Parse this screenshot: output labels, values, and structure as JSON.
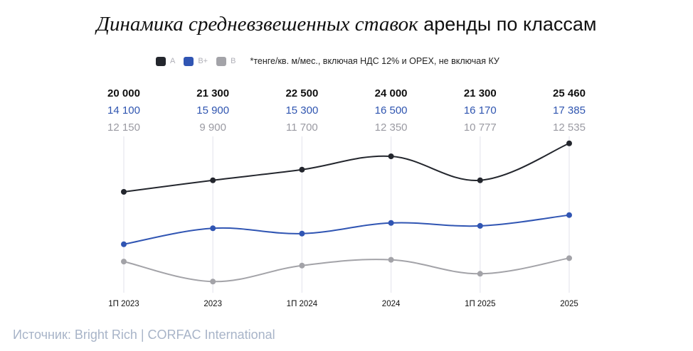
{
  "title": {
    "italic": "Динамика средневзвешенных ставок",
    "regular": " аренды по классам"
  },
  "legend": {
    "items": [
      {
        "name": "A",
        "color": "#23262d"
      },
      {
        "name": "B+",
        "color": "#3055b3"
      },
      {
        "name": "B",
        "color": "#a3a3a8"
      }
    ],
    "note": "*тенге/кв. м/мес., включая НДС 12% и OPEX, не включая КУ"
  },
  "source": "Источник: Bright Rich | CORFAC International",
  "chart_data": {
    "type": "line",
    "title": "Динамика средневзвешенных ставок аренды по классам",
    "xlabel": "",
    "ylabel": "тенге/кв. м/мес.",
    "categories": [
      "1П 2023",
      "2023",
      "1П 2024",
      "2024",
      "1П 2025",
      "2025"
    ],
    "series": [
      {
        "name": "A",
        "color": "#23262d",
        "values": [
          20000,
          21300,
          22500,
          24000,
          21300,
          25460
        ],
        "labels": [
          "20 000",
          "21 300",
          "22 500",
          "24 000",
          "21 300",
          "25 460"
        ]
      },
      {
        "name": "B+",
        "color": "#3055b3",
        "values": [
          14100,
          15900,
          15300,
          16500,
          16170,
          17385
        ],
        "labels": [
          "14 100",
          "15 900",
          "15 300",
          "16 500",
          "16 170",
          "17 385"
        ]
      },
      {
        "name": "B",
        "color": "#a3a3a8",
        "values": [
          12150,
          9900,
          11700,
          12350,
          10777,
          12535
        ],
        "labels": [
          "12 150",
          "9 900",
          "11 700",
          "12 350",
          "10 777",
          "12 535"
        ]
      }
    ],
    "ylim": [
      8000,
      27000
    ],
    "grid": "vertical",
    "legend_position": "top"
  }
}
